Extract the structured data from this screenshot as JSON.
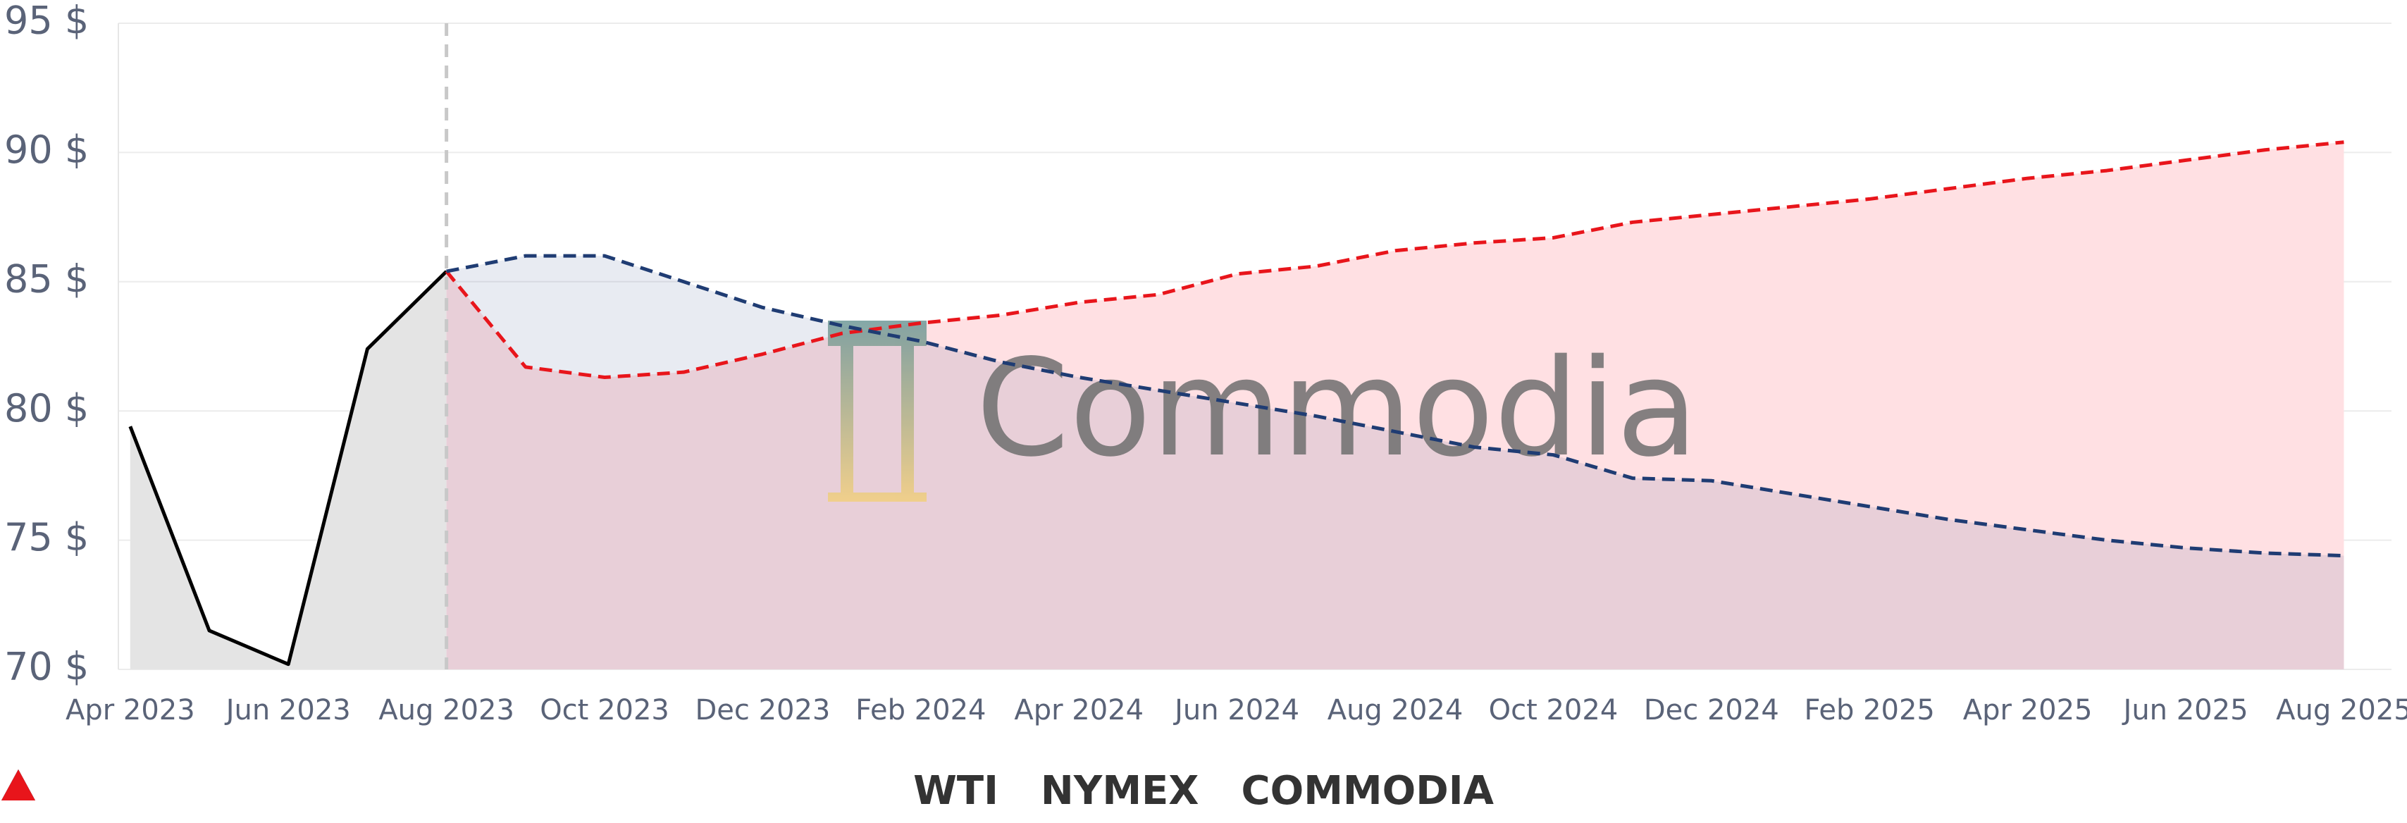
{
  "chart_data": {
    "type": "line",
    "watermark": "Commodia",
    "x": [
      "Apr 2023",
      null,
      "Jun 2023",
      null,
      "Aug 2023",
      null,
      "Oct 2023",
      null,
      "Dec 2023",
      null,
      "Feb 2024",
      null,
      "Apr 2024",
      null,
      "Jun 2024",
      null,
      "Aug 2024",
      null,
      "Oct 2024",
      null,
      "Dec 2024",
      null,
      "Feb 2025",
      null,
      "Apr 2025",
      null,
      "Jun 2025",
      null,
      "Aug 2025"
    ],
    "series": [
      {
        "name": "WTI",
        "color": "#000000",
        "fill": "#e4e4e4",
        "dash": false,
        "values": [
          79.4,
          71.5,
          70.2,
          82.4,
          85.4,
          null,
          null,
          null,
          null,
          null,
          null,
          null,
          null,
          null,
          null,
          null,
          null,
          null,
          null,
          null,
          null,
          null,
          null,
          null,
          null,
          null,
          null,
          null,
          null
        ]
      },
      {
        "name": "COMMODIA",
        "color": "#e8151b",
        "fill": "#ffe0e3",
        "dash": true,
        "values": [
          null,
          null,
          null,
          null,
          85.4,
          81.7,
          81.3,
          81.5,
          82.2,
          83.0,
          83.4,
          83.7,
          84.2,
          84.5,
          85.3,
          85.6,
          86.2,
          86.5,
          86.7,
          87.3,
          87.6,
          87.9,
          88.2,
          88.6,
          89.0,
          89.3,
          89.7,
          90.1,
          90.4
        ]
      },
      {
        "name": "NYMEX",
        "color": "#1f3c73",
        "fill": "rgba(30,55,130,0.1)",
        "dash": true,
        "values": [
          null,
          null,
          null,
          null,
          85.4,
          86.0,
          86.0,
          85.0,
          84.0,
          83.3,
          82.7,
          81.9,
          81.3,
          80.8,
          80.3,
          79.8,
          79.2,
          78.6,
          78.3,
          77.4,
          77.3,
          76.8,
          76.3,
          75.8,
          75.4,
          75.0,
          74.7,
          74.5,
          74.4
        ]
      }
    ],
    "legend_order": [
      0,
      2,
      1
    ],
    "ylim": [
      70,
      95
    ],
    "yticks": [
      {
        "value": 70,
        "label": "70 $"
      },
      {
        "value": 75,
        "label": "75 $"
      },
      {
        "value": 80,
        "label": "80 $"
      },
      {
        "value": 85,
        "label": "85 $"
      },
      {
        "value": 90,
        "label": "90 $"
      },
      {
        "value": 95,
        "label": "95 $"
      }
    ],
    "grid": true
  }
}
